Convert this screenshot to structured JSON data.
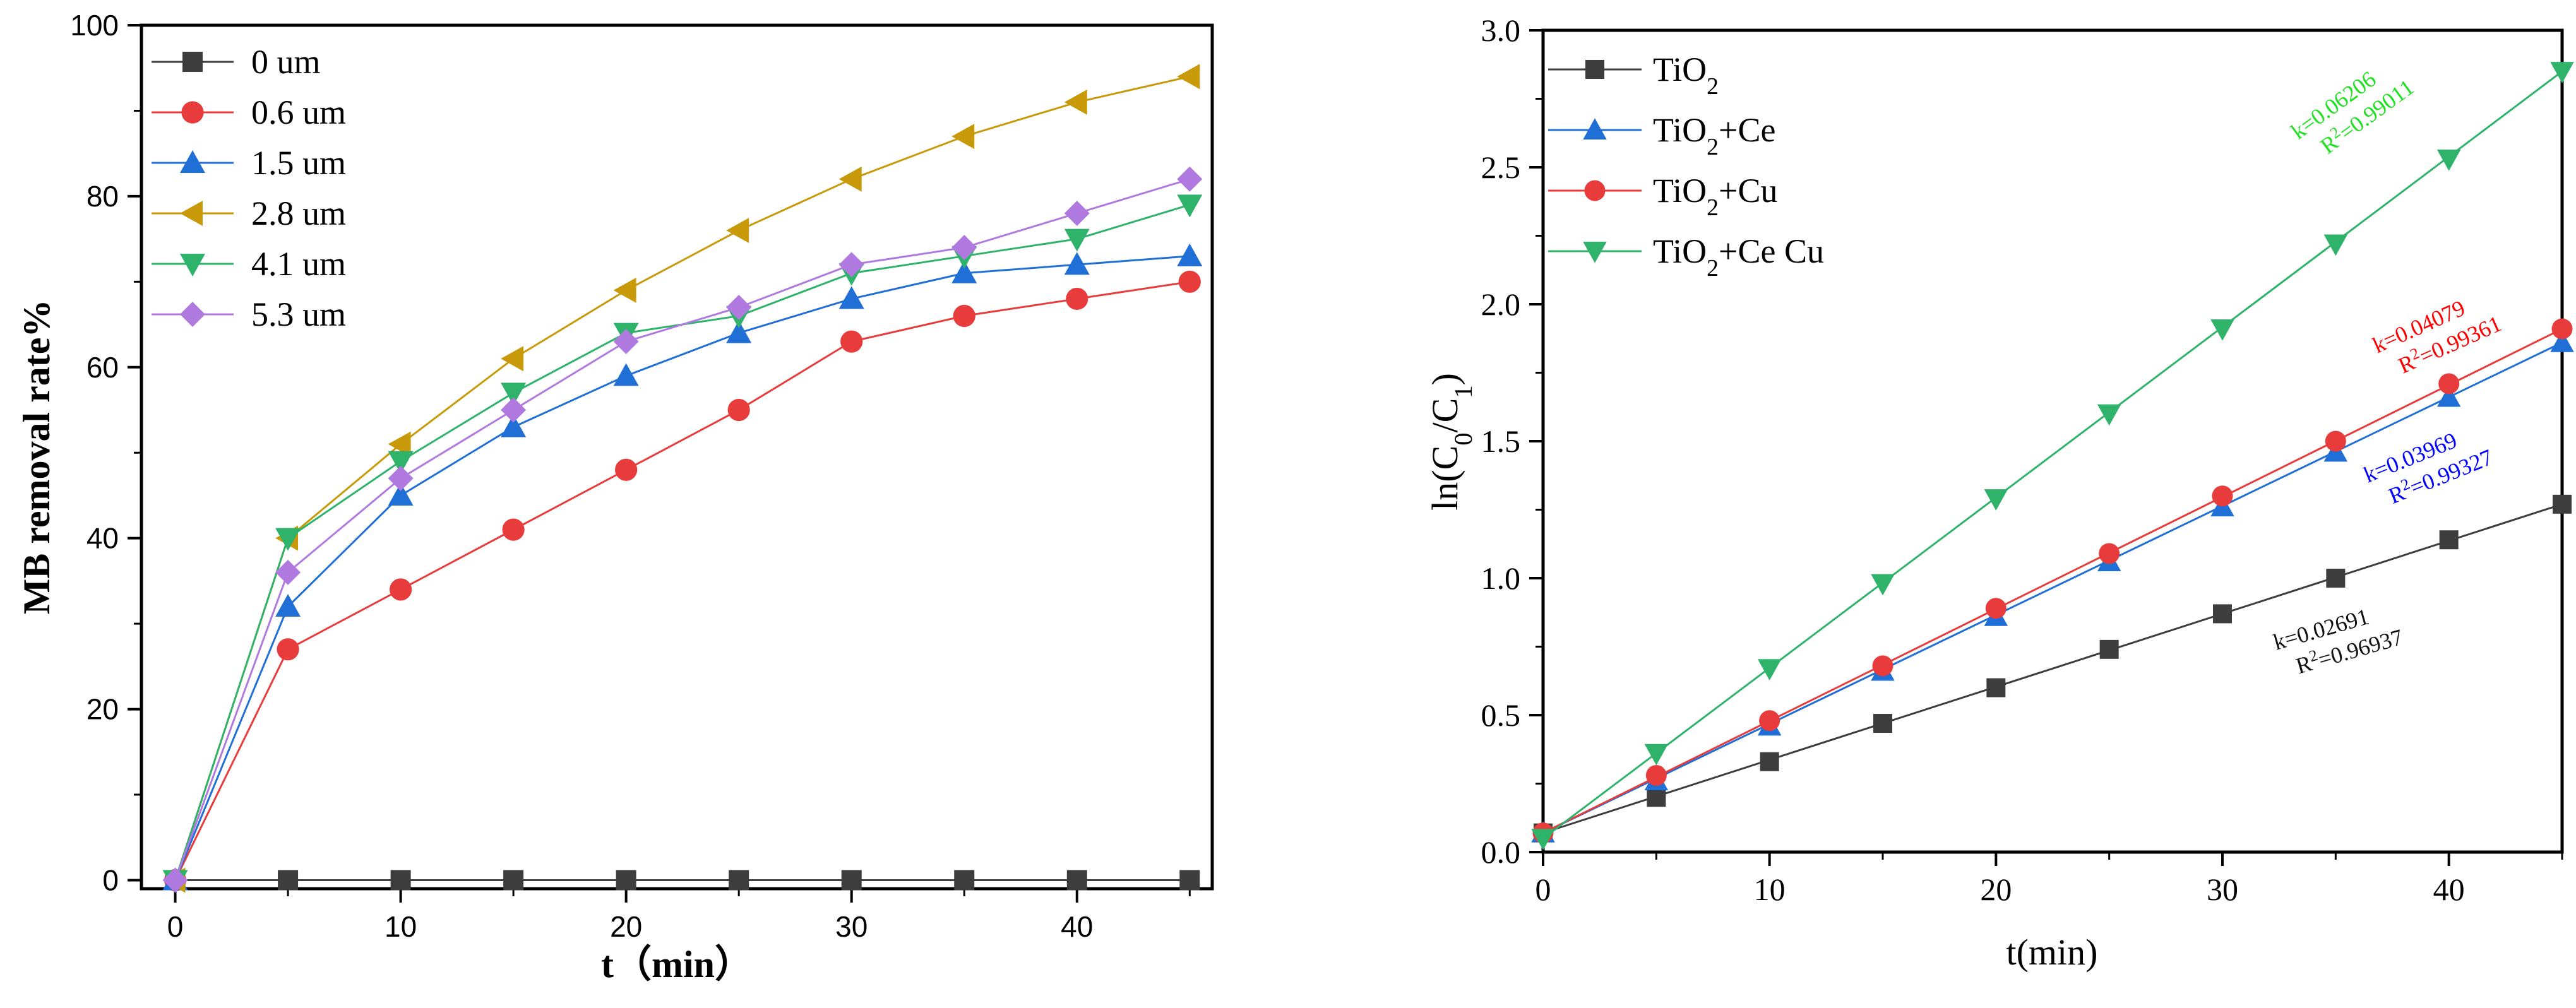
{
  "chart_data": [
    {
      "type": "line",
      "title": "",
      "xlabel": "t（min）",
      "ylabel": "MB removal rate%",
      "xlim": [
        -1.5,
        46
      ],
      "ylim": [
        -1,
        100
      ],
      "xticks": [
        0,
        10,
        20,
        30,
        40
      ],
      "yticks": [
        0,
        20,
        40,
        60,
        80,
        100
      ],
      "x": [
        0,
        5,
        10,
        15,
        20,
        25,
        30,
        35,
        40,
        45
      ],
      "legend_position": "top-left",
      "series": [
        {
          "name": "0 um",
          "color": "#3d3d3d",
          "marker": "square",
          "values": [
            0,
            0,
            0,
            0,
            0,
            0,
            0,
            0,
            0,
            0
          ]
        },
        {
          "name": "0.6 um",
          "color": "#e83c3c",
          "marker": "circle",
          "values": [
            0,
            27,
            34,
            41,
            48,
            55,
            63,
            66,
            68,
            70
          ]
        },
        {
          "name": "1.5 um",
          "color": "#1f6fd6",
          "marker": "triangle-up",
          "values": [
            0,
            32,
            45,
            53,
            59,
            64,
            68,
            71,
            72,
            73
          ]
        },
        {
          "name": "2.8 um",
          "color": "#c89a0a",
          "marker": "triangle-left",
          "values": [
            0,
            40,
            51,
            61,
            69,
            76,
            82,
            87,
            91,
            94
          ]
        },
        {
          "name": "4.1 um",
          "color": "#2fb36b",
          "marker": "triangle-down",
          "values": [
            0,
            40,
            49,
            57,
            64,
            66,
            71,
            73,
            75,
            79
          ]
        },
        {
          "name": "5.3 um",
          "color": "#b079e0",
          "marker": "diamond",
          "values": [
            0,
            36,
            47,
            55,
            63,
            67,
            72,
            74,
            78,
            82
          ]
        }
      ]
    },
    {
      "type": "line",
      "title": "",
      "xlabel": "t(min)",
      "ylabel": "ln(C0/C1)",
      "xlim": [
        0,
        45
      ],
      "ylim": [
        0,
        3.0
      ],
      "xticks": [
        0,
        10,
        20,
        30,
        40
      ],
      "yticks": [
        "0.0",
        "0.5",
        "1.0",
        "1.5",
        "2.0",
        "2.5",
        "3.0"
      ],
      "x": [
        0,
        5,
        10,
        15,
        20,
        25,
        30,
        35,
        40,
        45
      ],
      "legend_position": "top-left",
      "series": [
        {
          "name": "TiO2",
          "color": "#3d3d3d",
          "marker": "square",
          "values": [
            0.07,
            0.2,
            0.33,
            0.47,
            0.6,
            0.74,
            0.87,
            1.0,
            1.14,
            1.27
          ],
          "fit": [
            0.07,
            1.27
          ]
        },
        {
          "name": "TiO2+Ce",
          "color": "#1f6fd6",
          "marker": "triangle-up",
          "values": [
            0.07,
            0.26,
            0.46,
            0.66,
            0.86,
            1.06,
            1.26,
            1.46,
            1.66,
            1.86
          ],
          "fit": [
            0.07,
            1.86
          ]
        },
        {
          "name": "TiO2+Cu",
          "color": "#e83c3c",
          "marker": "circle",
          "values": [
            0.07,
            0.28,
            0.48,
            0.68,
            0.89,
            1.09,
            1.3,
            1.5,
            1.71,
            1.91
          ],
          "fit": [
            0.07,
            1.91
          ]
        },
        {
          "name": "TiO2+Ce Cu",
          "color": "#2fb36b",
          "marker": "triangle-down",
          "values": [
            0.05,
            0.36,
            0.67,
            0.98,
            1.29,
            1.6,
            1.91,
            2.22,
            2.53,
            2.85
          ],
          "fit": [
            0.05,
            2.85
          ]
        }
      ],
      "annotations": [
        {
          "series": "TiO2+Ce Cu",
          "color": "#22e022",
          "k": "k=0.06206",
          "r2": "=0.99011"
        },
        {
          "series": "TiO2+Cu",
          "color": "#ff0000",
          "k": "k=0.04079",
          "r2": "=0.99361"
        },
        {
          "series": "TiO2+Ce",
          "color": "#0000ff",
          "k": "k=0.03969",
          "r2": "=0.99327"
        },
        {
          "series": "TiO2",
          "color": "#111111",
          "k": "k=0.02691",
          "r2": "=0.96937"
        }
      ]
    }
  ]
}
